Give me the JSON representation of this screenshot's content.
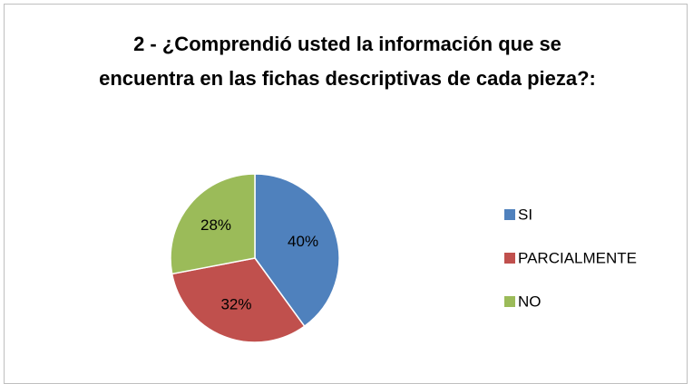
{
  "chart_data": {
    "type": "pie",
    "title": "2 - ¿Comprendió usted la información que se encuentra en las fichas descriptivas de cada pieza?:",
    "categories": [
      "SI",
      "PARCIALMENTE",
      "NO"
    ],
    "values": [
      40,
      32,
      28
    ],
    "value_labels": [
      "40%",
      "32%",
      "28%"
    ],
    "colors": [
      "#4f81bd",
      "#c0504d",
      "#9bbb59"
    ],
    "legend": "right"
  }
}
